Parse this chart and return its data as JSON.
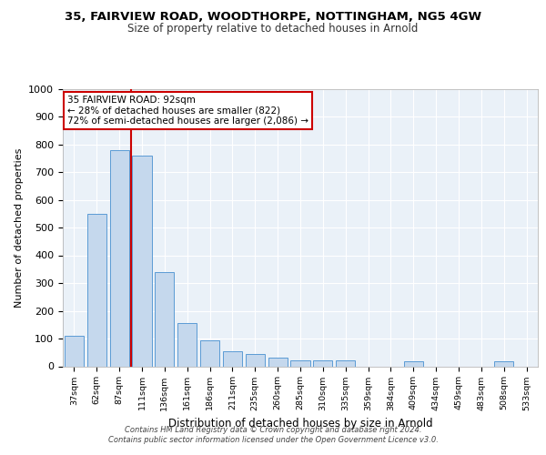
{
  "title_line1": "35, FAIRVIEW ROAD, WOODTHORPE, NOTTINGHAM, NG5 4GW",
  "title_line2": "Size of property relative to detached houses in Arnold",
  "xlabel": "Distribution of detached houses by size in Arnold",
  "ylabel": "Number of detached properties",
  "bar_color": "#c5d8ed",
  "bar_edge_color": "#5b9bd5",
  "categories": [
    "37sqm",
    "62sqm",
    "87sqm",
    "111sqm",
    "136sqm",
    "161sqm",
    "186sqm",
    "211sqm",
    "235sqm",
    "260sqm",
    "285sqm",
    "310sqm",
    "335sqm",
    "359sqm",
    "384sqm",
    "409sqm",
    "434sqm",
    "459sqm",
    "483sqm",
    "508sqm",
    "533sqm"
  ],
  "values": [
    110,
    550,
    780,
    760,
    340,
    155,
    95,
    55,
    45,
    30,
    20,
    20,
    20,
    0,
    0,
    18,
    0,
    0,
    0,
    18,
    0
  ],
  "vline_color": "#cc0000",
  "vline_x": 2.5,
  "annotation_text": "35 FAIRVIEW ROAD: 92sqm\n← 28% of detached houses are smaller (822)\n72% of semi-detached houses are larger (2,086) →",
  "annotation_box_color": "#ffffff",
  "annotation_box_edge": "#cc0000",
  "ylim": [
    0,
    1000
  ],
  "yticks": [
    0,
    100,
    200,
    300,
    400,
    500,
    600,
    700,
    800,
    900,
    1000
  ],
  "background_color": "#eaf1f8",
  "grid_color": "#ffffff",
  "footer_line1": "Contains HM Land Registry data © Crown copyright and database right 2024.",
  "footer_line2": "Contains public sector information licensed under the Open Government Licence v3.0."
}
